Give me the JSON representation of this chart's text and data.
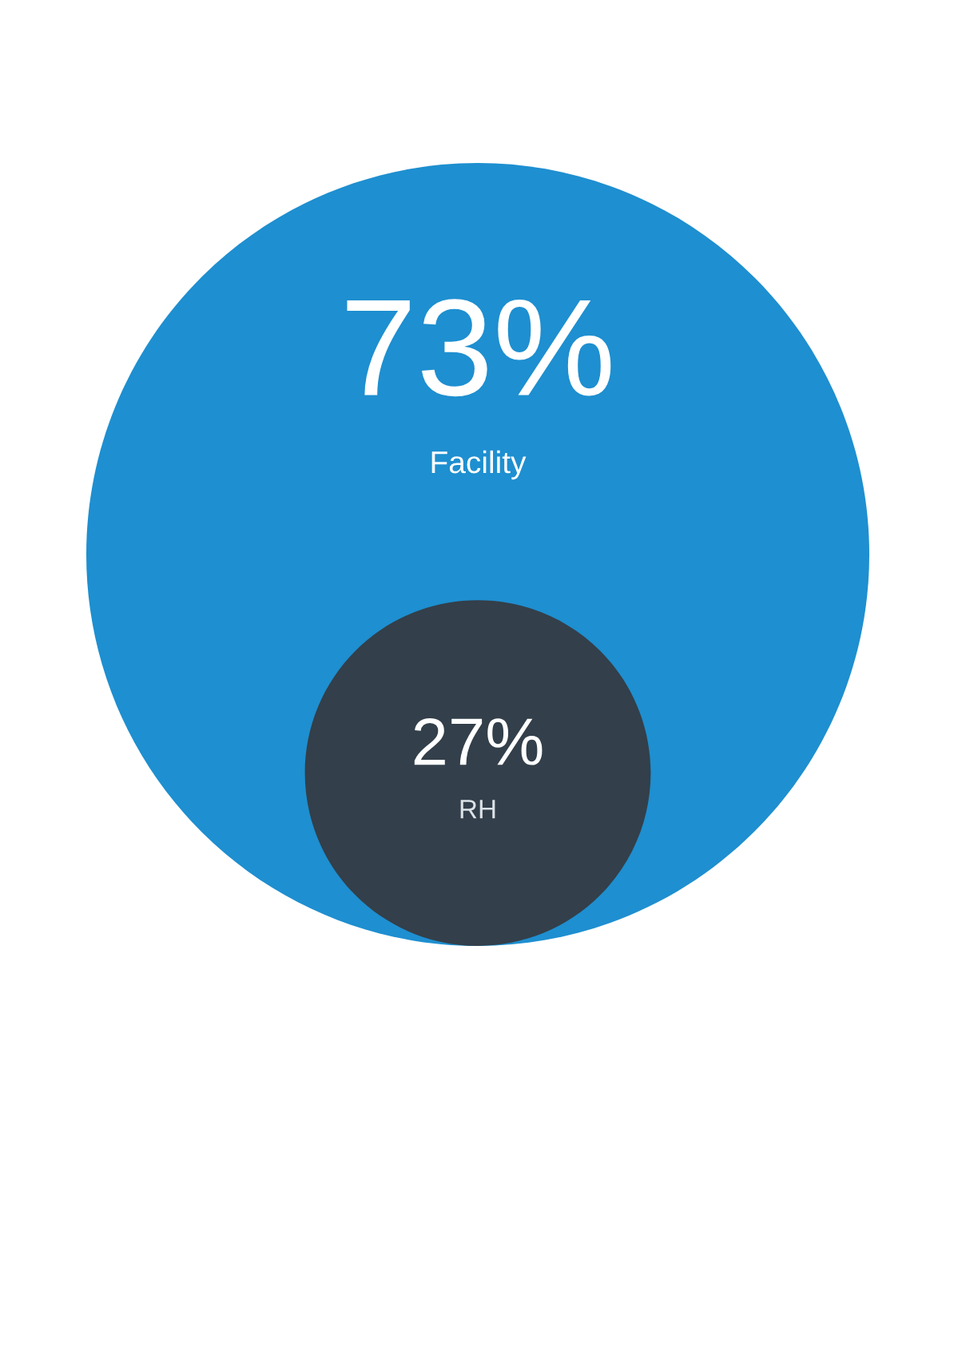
{
  "chart_data": {
    "type": "other",
    "categories": [
      "Facility",
      "RH"
    ],
    "values": [
      73,
      27
    ],
    "value_labels": [
      "73%",
      "27%"
    ],
    "colors": [
      "#1e8fd0",
      "#333f4a"
    ]
  }
}
